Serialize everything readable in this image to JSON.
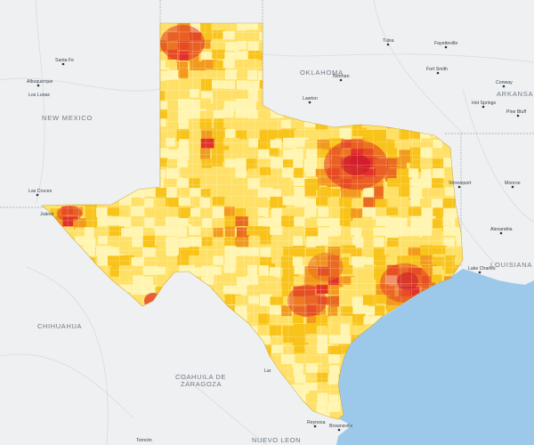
{
  "map": {
    "palette": {
      "background": "#eef0f1",
      "water": "#9cc9ea",
      "roads": "#d9dde2",
      "border": "#a0a6ad",
      "choropleth": [
        "#fff5b0",
        "#ffe066",
        "#f8c31a",
        "#f29a1e",
        "#ea6a21",
        "#e2312a",
        "#c8102e"
      ]
    },
    "labels": {
      "states": {
        "new_mexico": "NEW MEXICO",
        "oklahoma": "OKLAHOMA",
        "arkansas": "ARKANSAS",
        "louisiana": "LOUISIANA"
      },
      "mexico": {
        "chihuahua": "CHIHUAHUA",
        "coahuila_1": "COAHUILA DE",
        "coahuila_2": "ZARAGOZA",
        "nuevo_leon": "NUEVO LEON"
      },
      "cities": {
        "santa_fe": "Santa Fe",
        "albuquerque": "Albuquerque",
        "los_lunas": "Los Lunas",
        "las_cruces": "Las Cruces",
        "juarez": "Juárez",
        "tulsa": "Tulsa",
        "fayetteville": "Fayetteville",
        "norman": "Norman",
        "fort_smith": "Fort Smith",
        "lawton": "Lawton",
        "conway": "Conway",
        "hot_springs": "Hot Springs",
        "pine_bluff": "Pine Bluff",
        "shreveport": "Shreveport",
        "monroe": "Monroe",
        "alexandria": "Alexandria",
        "lake_charles": "Lake Charles",
        "laredo": "Lar",
        "reynosa": "Reynosa",
        "brownsville": "Brownsville",
        "torreon": "Torreón"
      }
    }
  }
}
